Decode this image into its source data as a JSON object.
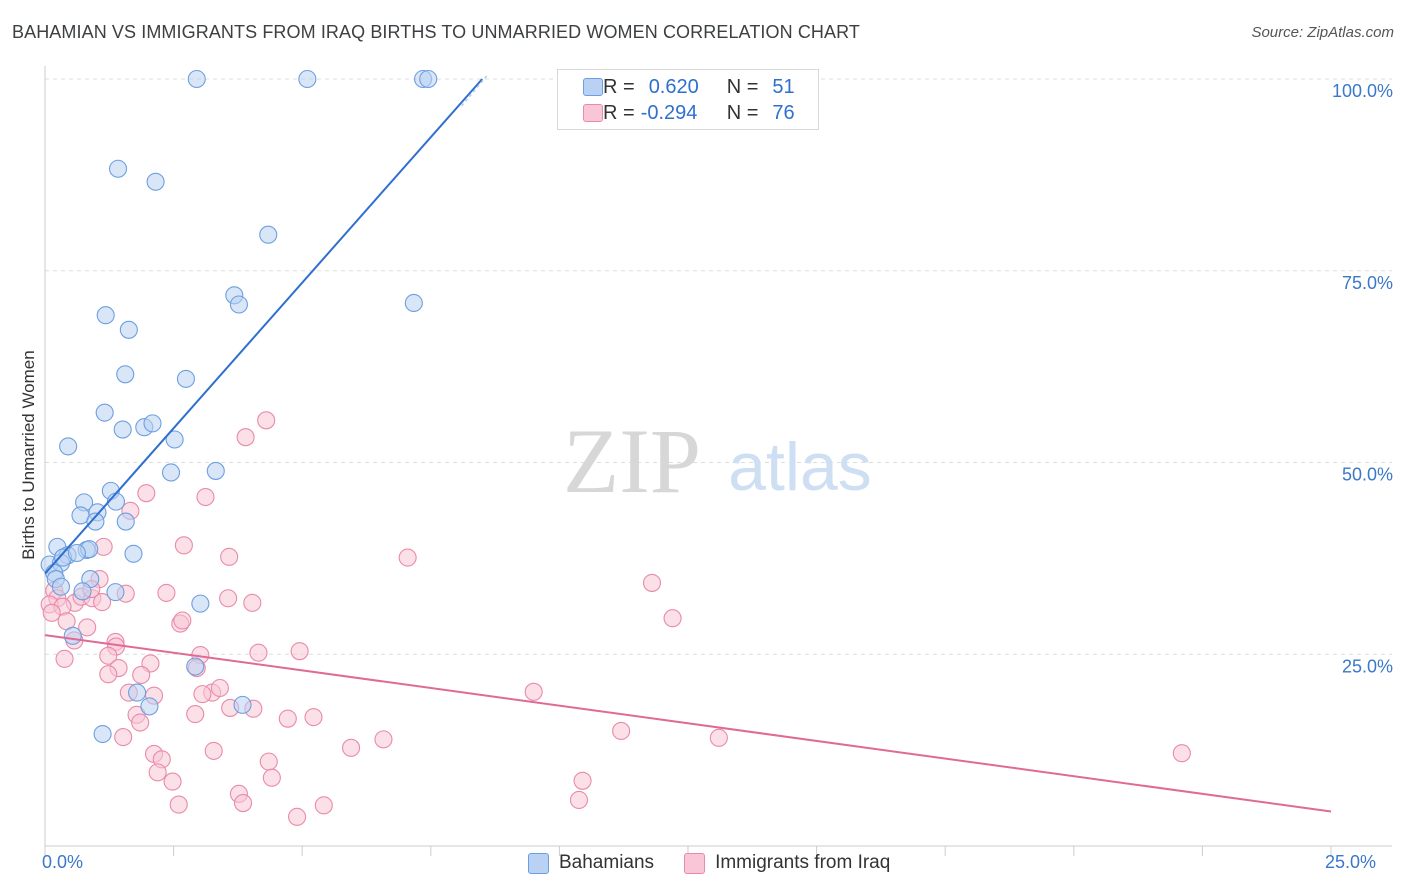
{
  "title": "BAHAMIAN VS IMMIGRANTS FROM IRAQ BIRTHS TO UNMARRIED WOMEN CORRELATION CHART",
  "source": "Source: ZipAtlas.com",
  "watermark": {
    "zip": "ZIP",
    "atlas": "atlas"
  },
  "colors": {
    "blue_fill": "#b9d2f3",
    "blue_stroke": "#6d9fe0",
    "blue_line": "#2f6fcf",
    "pink_fill": "#f8c6d6",
    "pink_stroke": "#e98aab",
    "pink_line": "#e06a96",
    "axis_text": "#3a78c9",
    "grid": "#dddddd"
  },
  "legend": {
    "rows": [
      {
        "r_label": "R =",
        "r_value": "0.620",
        "n_label": "N =",
        "n_value": "51"
      },
      {
        "r_label": "R =",
        "r_value": "-0.294",
        "n_label": "N =",
        "n_value": "76"
      }
    ]
  },
  "bottom_legend": [
    "Bahamians",
    "Immigrants from Iraq"
  ],
  "chart_data": {
    "type": "scatter",
    "title": "BAHAMIAN VS IMMIGRANTS FROM IRAQ BIRTHS TO UNMARRIED WOMEN CORRELATION CHART",
    "xlabel": "",
    "ylabel": "Births to Unmarried Women",
    "xlim": [
      0,
      25
    ],
    "ylim": [
      0,
      100
    ],
    "x_tick_labels": [
      {
        "value": 0,
        "label": "0.0%"
      },
      {
        "value": 25,
        "label": "25.0%"
      }
    ],
    "y_tick_labels": [
      {
        "value": 25,
        "label": "25.0%"
      },
      {
        "value": 50,
        "label": "50.0%"
      },
      {
        "value": 75,
        "label": "75.0%"
      },
      {
        "value": 100,
        "label": "100.0%"
      }
    ],
    "series": [
      {
        "name": "Bahamians",
        "color": "blue",
        "trendline": {
          "x": [
            0,
            8.5
          ],
          "y": [
            35.5,
            100
          ]
        },
        "trendline_dashed": {
          "x": [
            8.1,
            8.6
          ],
          "y": [
            96.5,
            100.5
          ]
        },
        "points": [
          [
            2.95,
            100
          ],
          [
            5.1,
            100
          ],
          [
            7.35,
            100
          ],
          [
            7.45,
            100
          ],
          [
            1.42,
            88.3
          ],
          [
            2.15,
            86.6
          ],
          [
            4.34,
            79.7
          ],
          [
            3.68,
            71.8
          ],
          [
            3.77,
            70.6
          ],
          [
            7.17,
            70.8
          ],
          [
            1.18,
            69.2
          ],
          [
            1.63,
            67.3
          ],
          [
            1.56,
            61.5
          ],
          [
            2.74,
            60.9
          ],
          [
            1.16,
            56.5
          ],
          [
            1.51,
            54.3
          ],
          [
            1.93,
            54.6
          ],
          [
            2.09,
            55.1
          ],
          [
            0.45,
            52.1
          ],
          [
            2.52,
            53.0
          ],
          [
            2.45,
            48.7
          ],
          [
            3.32,
            48.9
          ],
          [
            1.28,
            46.3
          ],
          [
            0.76,
            44.8
          ],
          [
            1.38,
            44.9
          ],
          [
            0.69,
            43.1
          ],
          [
            1.02,
            43.5
          ],
          [
            0.98,
            42.3
          ],
          [
            1.57,
            42.3
          ],
          [
            0.24,
            39.0
          ],
          [
            0.81,
            38.6
          ],
          [
            0.86,
            38.7
          ],
          [
            0.44,
            37.9
          ],
          [
            0.09,
            36.7
          ],
          [
            0.31,
            36.9
          ],
          [
            0.35,
            37.6
          ],
          [
            0.62,
            38.2
          ],
          [
            1.72,
            38.1
          ],
          [
            0.18,
            35.6
          ],
          [
            0.21,
            34.8
          ],
          [
            0.88,
            34.8
          ],
          [
            0.31,
            33.8
          ],
          [
            0.73,
            33.2
          ],
          [
            1.37,
            33.1
          ],
          [
            3.02,
            31.6
          ],
          [
            0.54,
            27.4
          ],
          [
            2.92,
            23.4
          ],
          [
            1.79,
            20.0
          ],
          [
            3.84,
            18.4
          ],
          [
            2.03,
            18.2
          ],
          [
            1.12,
            14.6
          ]
        ]
      },
      {
        "name": "Immigrants from Iraq",
        "color": "pink",
        "trendline": {
          "x": [
            0,
            25
          ],
          "y": [
            27.5,
            4.5
          ]
        },
        "points": [
          [
            4.3,
            55.5
          ],
          [
            3.9,
            53.3
          ],
          [
            1.97,
            46.0
          ],
          [
            3.12,
            45.5
          ],
          [
            1.66,
            43.7
          ],
          [
            2.7,
            39.2
          ],
          [
            1.14,
            39.0
          ],
          [
            3.58,
            37.7
          ],
          [
            7.05,
            37.6
          ],
          [
            11.8,
            34.3
          ],
          [
            1.06,
            34.8
          ],
          [
            0.18,
            33.3
          ],
          [
            0.24,
            32.3
          ],
          [
            0.09,
            31.5
          ],
          [
            0.58,
            31.7
          ],
          [
            0.71,
            32.5
          ],
          [
            0.92,
            32.3
          ],
          [
            1.11,
            31.8
          ],
          [
            1.57,
            32.9
          ],
          [
            2.36,
            33.0
          ],
          [
            3.56,
            32.3
          ],
          [
            4.03,
            31.7
          ],
          [
            0.34,
            31.2
          ],
          [
            0.13,
            30.4
          ],
          [
            0.42,
            29.3
          ],
          [
            0.82,
            28.5
          ],
          [
            2.63,
            29.0
          ],
          [
            2.67,
            29.4
          ],
          [
            12.2,
            29.7
          ],
          [
            0.57,
            26.8
          ],
          [
            1.37,
            26.6
          ],
          [
            1.38,
            26.0
          ],
          [
            3.02,
            24.9
          ],
          [
            4.15,
            25.2
          ],
          [
            4.95,
            25.4
          ],
          [
            0.38,
            24.4
          ],
          [
            1.23,
            24.8
          ],
          [
            2.05,
            23.8
          ],
          [
            1.43,
            23.2
          ],
          [
            2.95,
            23.2
          ],
          [
            1.87,
            22.3
          ],
          [
            3.25,
            20.0
          ],
          [
            3.4,
            20.6
          ],
          [
            9.5,
            20.1
          ],
          [
            1.63,
            20.0
          ],
          [
            2.12,
            19.6
          ],
          [
            3.06,
            19.8
          ],
          [
            1.78,
            17.1
          ],
          [
            1.85,
            16.1
          ],
          [
            2.92,
            17.2
          ],
          [
            3.6,
            18.0
          ],
          [
            4.05,
            17.9
          ],
          [
            4.72,
            16.6
          ],
          [
            5.22,
            16.8
          ],
          [
            11.2,
            15.0
          ],
          [
            13.1,
            14.1
          ],
          [
            6.58,
            13.9
          ],
          [
            1.52,
            14.2
          ],
          [
            2.12,
            12.0
          ],
          [
            2.27,
            11.3
          ],
          [
            3.28,
            12.4
          ],
          [
            5.95,
            12.8
          ],
          [
            4.35,
            11.0
          ],
          [
            22.1,
            12.1
          ],
          [
            2.19,
            9.6
          ],
          [
            2.48,
            8.4
          ],
          [
            4.41,
            8.9
          ],
          [
            10.45,
            8.5
          ],
          [
            3.77,
            6.8
          ],
          [
            2.6,
            5.4
          ],
          [
            3.85,
            5.6
          ],
          [
            10.38,
            6.0
          ],
          [
            5.42,
            5.3
          ],
          [
            4.9,
            3.8
          ],
          [
            1.23,
            22.4
          ],
          [
            0.9,
            33.5
          ]
        ]
      }
    ]
  }
}
